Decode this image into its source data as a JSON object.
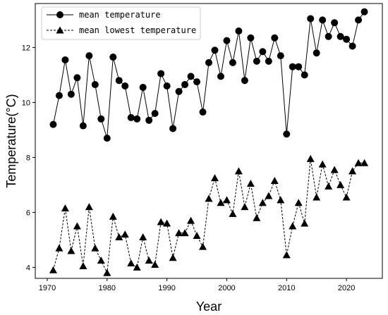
{
  "chart_data": {
    "type": "line",
    "title": "",
    "xlabel": "Year",
    "ylabel": "Temperature(°C)",
    "xlim": [
      1968,
      2026
    ],
    "ylim": [
      3.6,
      13.6
    ],
    "xticks": [
      1970,
      1980,
      1990,
      2000,
      2010,
      2020
    ],
    "yticks": [
      4,
      6,
      8,
      10,
      12
    ],
    "grid": false,
    "legend_position": "top-left",
    "x": [
      1971,
      1972,
      1973,
      1974,
      1975,
      1976,
      1977,
      1978,
      1979,
      1980,
      1981,
      1982,
      1983,
      1984,
      1985,
      1986,
      1987,
      1988,
      1989,
      1990,
      1991,
      1992,
      1993,
      1994,
      1995,
      1996,
      1997,
      1998,
      1999,
      2000,
      2001,
      2002,
      2003,
      2004,
      2005,
      2006,
      2007,
      2008,
      2009,
      2010,
      2011,
      2012,
      2013,
      2014,
      2015,
      2016,
      2017,
      2018,
      2019,
      2020,
      2021,
      2022,
      2023
    ],
    "series": [
      {
        "name": "mean temperature",
        "marker": "circle",
        "line_style": "solid",
        "color": "#000000",
        "values": [
          9.2,
          10.25,
          11.55,
          10.3,
          10.9,
          9.15,
          11.7,
          10.65,
          9.4,
          8.7,
          11.65,
          10.8,
          10.6,
          9.45,
          9.4,
          10.55,
          9.35,
          9.6,
          11.05,
          10.6,
          9.05,
          10.4,
          10.65,
          10.95,
          10.75,
          9.65,
          11.45,
          11.9,
          10.95,
          12.25,
          11.45,
          12.6,
          10.8,
          12.35,
          11.5,
          11.85,
          11.5,
          12.35,
          11.7,
          8.85,
          11.3,
          11.3,
          11.0,
          13.05,
          11.8,
          13.0,
          12.4,
          12.9,
          12.4,
          12.3,
          12.05,
          13.0,
          13.3
        ]
      },
      {
        "name": "mean lowest temperature",
        "marker": "triangle",
        "line_style": "dashed",
        "color": "#000000",
        "values": [
          3.9,
          4.7,
          6.15,
          4.6,
          5.5,
          4.05,
          6.2,
          4.7,
          4.25,
          3.8,
          5.85,
          5.1,
          5.2,
          4.15,
          4.0,
          5.1,
          4.25,
          4.1,
          5.65,
          5.6,
          4.35,
          5.25,
          5.25,
          5.7,
          5.15,
          4.75,
          6.5,
          7.25,
          6.35,
          6.45,
          5.95,
          7.5,
          6.2,
          7.05,
          5.8,
          6.35,
          6.6,
          7.15,
          6.45,
          4.45,
          5.5,
          6.35,
          5.6,
          7.95,
          6.55,
          7.75,
          6.95,
          7.55,
          7.0,
          6.55,
          7.5,
          7.8,
          7.8
        ]
      }
    ]
  }
}
